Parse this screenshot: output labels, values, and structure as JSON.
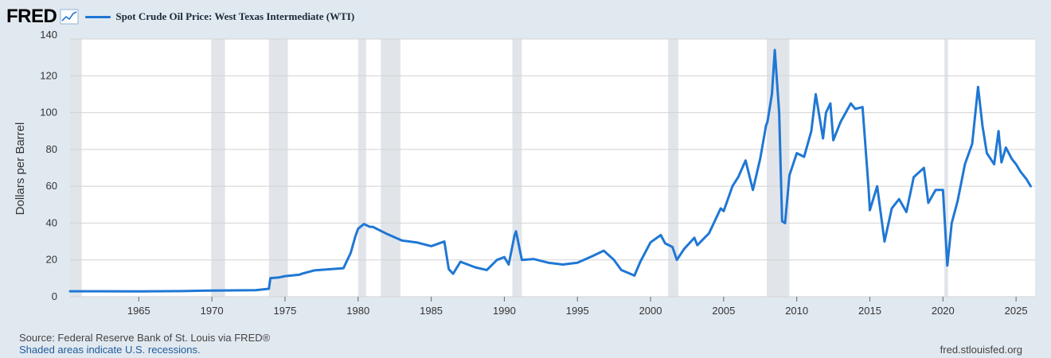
{
  "header": {
    "logo_text": "FRED",
    "logo_icon": "line-chart-icon",
    "series_title": "Spot Crude Oil Price: West Texas Intermediate (WTI)"
  },
  "footer": {
    "source": "Source: Federal Reserve Bank of St. Louis via FRED®",
    "recession_note": "Shaded areas indicate U.S. recessions.",
    "url": "fred.stlouisfed.org"
  },
  "colors": {
    "background": "#e1e9f0",
    "plot_background": "#ffffff",
    "series": "#1f77d4",
    "recession": "#e1e5ea",
    "grid": "#d2d2d2"
  },
  "chart_data": {
    "type": "line",
    "title": "Spot Crude Oil Price: West Texas Intermediate (WTI)",
    "ylabel": "Dollars per Barrel",
    "xlabel": "",
    "xlim": [
      1960.3,
      2026.3
    ],
    "ylim": [
      0,
      140
    ],
    "yticks": [
      0,
      20,
      40,
      60,
      80,
      100,
      120,
      140
    ],
    "xticks": [
      1965,
      1970,
      1975,
      1980,
      1985,
      1990,
      1995,
      2000,
      2005,
      2010,
      2015,
      2020,
      2025
    ],
    "grid": true,
    "legend": "top-left",
    "recessions": [
      [
        1960.3,
        1961.1
      ],
      [
        1969.95,
        1970.9
      ],
      [
        1973.9,
        1975.2
      ],
      [
        1980.0,
        1980.55
      ],
      [
        1981.55,
        1982.9
      ],
      [
        1990.55,
        1991.2
      ],
      [
        2001.2,
        2001.9
      ],
      [
        2007.95,
        2009.5
      ],
      [
        2020.1,
        2020.35
      ]
    ],
    "series": [
      {
        "name": "Spot Crude Oil Price: West Texas Intermediate (WTI)",
        "x": [
          1960.3,
          1965.0,
          1968.0,
          1970.0,
          1973.0,
          1973.9,
          1974.0,
          1974.6,
          1975.0,
          1976.0,
          1976.2,
          1977.0,
          1978.0,
          1979.0,
          1979.5,
          1979.8,
          1980.0,
          1980.4,
          1980.8,
          1981.0,
          1981.5,
          1982.0,
          1983.0,
          1984.0,
          1985.0,
          1985.9,
          1986.2,
          1986.5,
          1987.0,
          1988.0,
          1988.8,
          1989.5,
          1990.0,
          1990.3,
          1990.7,
          1990.8,
          1991.2,
          1992.0,
          1993.0,
          1994.0,
          1995.0,
          1996.0,
          1996.8,
          1997.5,
          1998.0,
          1998.9,
          1999.3,
          2000.0,
          2000.7,
          2001.0,
          2001.5,
          2001.8,
          2002.3,
          2003.0,
          2003.2,
          2004.0,
          2004.8,
          2005.0,
          2005.6,
          2006.0,
          2006.5,
          2007.0,
          2007.5,
          2007.9,
          2008.0,
          2008.3,
          2008.5,
          2008.8,
          2009.0,
          2009.2,
          2009.5,
          2010.0,
          2010.5,
          2011.0,
          2011.3,
          2011.8,
          2012.0,
          2012.3,
          2012.5,
          2013.0,
          2013.7,
          2014.0,
          2014.5,
          2014.9,
          2015.0,
          2015.5,
          2015.8,
          2016.0,
          2016.5,
          2017.0,
          2017.5,
          2018.0,
          2018.7,
          2019.0,
          2019.5,
          2020.0,
          2020.3,
          2020.6,
          2021.0,
          2021.5,
          2022.0,
          2022.4,
          2022.7,
          2023.0,
          2023.5,
          2023.8,
          2024.0,
          2024.3,
          2024.7,
          2025.0,
          2025.3,
          2025.7,
          2026.0
        ],
        "y": [
          2.97,
          2.92,
          3.07,
          3.35,
          3.6,
          4.3,
          10.1,
          10.5,
          11.2,
          12.0,
          12.6,
          14.3,
          14.9,
          15.5,
          24.0,
          32.5,
          37.0,
          39.5,
          38.0,
          38.0,
          36.0,
          34.0,
          30.5,
          29.5,
          27.5,
          30.0,
          15.0,
          12.5,
          19.0,
          16.0,
          14.5,
          20.0,
          21.5,
          17.5,
          33.5,
          35.5,
          20.0,
          20.5,
          18.5,
          17.5,
          18.5,
          22.0,
          25.0,
          20.0,
          14.5,
          11.5,
          19.0,
          29.5,
          33.5,
          29.0,
          27.0,
          20.0,
          26.0,
          32.0,
          28.0,
          34.5,
          48.0,
          46.5,
          60.0,
          65.0,
          74.0,
          58.0,
          75.0,
          93.0,
          95.0,
          110.0,
          134.0,
          100.0,
          41.0,
          40.0,
          66.0,
          78.0,
          76.0,
          90.0,
          110.0,
          86.0,
          100.0,
          105.0,
          85.0,
          95.0,
          105.0,
          102.0,
          103.0,
          60.0,
          47.0,
          60.0,
          42.0,
          30.0,
          48.0,
          53.0,
          46.0,
          65.0,
          70.0,
          51.0,
          58.0,
          58.0,
          17.0,
          40.0,
          52.0,
          72.0,
          83.0,
          114.0,
          93.0,
          78.0,
          72.0,
          90.0,
          73.0,
          81.0,
          75.0,
          72.0,
          68.0,
          64.0,
          60.0
        ]
      }
    ]
  }
}
